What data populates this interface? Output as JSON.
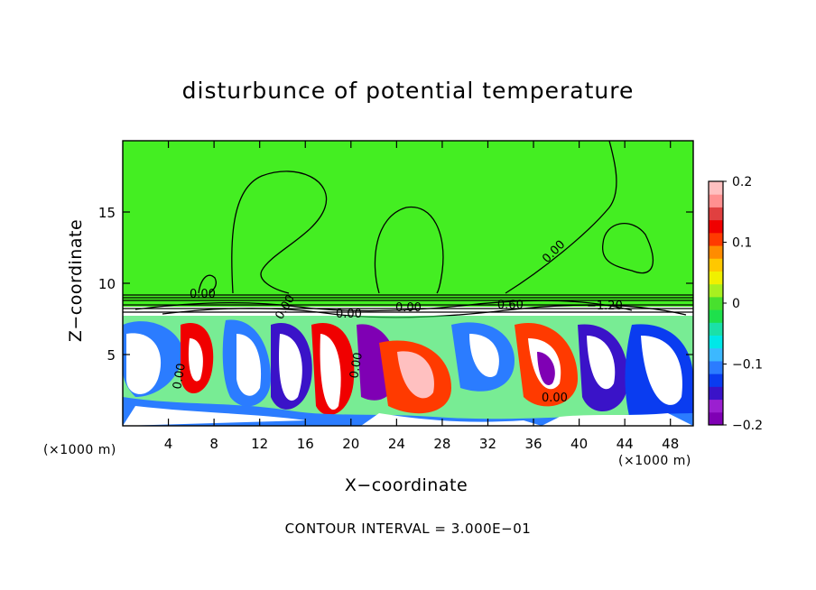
{
  "chart_data": {
    "type": "heatmap",
    "title": "disturbunce of potential temperature",
    "xlabel": "X−coordinate",
    "ylabel": "Z−coordinate",
    "x_unit": "(×1000 m)",
    "x_unit_right": "(×1000 m)",
    "xlim": [
      0,
      50
    ],
    "ylim": [
      0,
      20
    ],
    "x_ticks": [
      4,
      8,
      12,
      16,
      20,
      24,
      28,
      32,
      36,
      40,
      44,
      48
    ],
    "y_ticks": [
      5,
      10,
      15
    ],
    "footer": "CONTOUR INTERVAL = 3.000E−01",
    "colorbar": {
      "min": -0.2,
      "max": 0.2,
      "ticks": [
        "0.2",
        "0.1",
        "0",
        "−0.1",
        "−0.2"
      ],
      "colors": [
        "#7f00b4",
        "#9b1fd0",
        "#3a13c8",
        "#0a3cf0",
        "#2b7cff",
        "#3cb8ff",
        "#00e8e8",
        "#1be0a8",
        "#1ee04c",
        "#48e02e",
        "#a8f020",
        "#f0f000",
        "#ffc800",
        "#ff8c00",
        "#ff3a00",
        "#f00000",
        "#e04040",
        "#ff9090",
        "#ffc0c0"
      ]
    },
    "contour_labels": [
      "0.00",
      "0.00",
      "0.00",
      "0.00",
      "0.00",
      "0.00",
      "0.00",
      "0.00",
      "−0.60",
      "−1.20"
    ]
  },
  "colors": {
    "upper_field": "#44ee22",
    "background": "#ffffff"
  }
}
